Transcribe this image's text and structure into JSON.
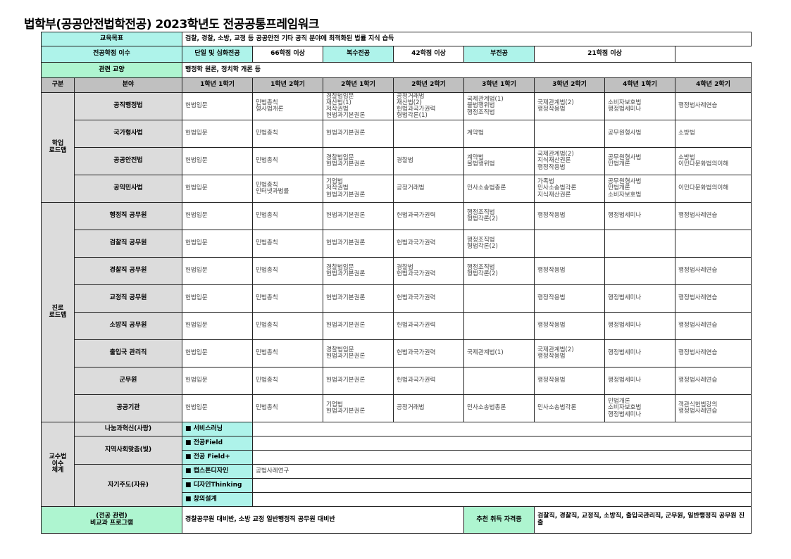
{
  "title": "법학부(공공안전법학전공) 2023학년도 전공공통프레임워크",
  "goal": {
    "label": "교육목표",
    "value": "검찰, 경찰, 소방, 교정 등 공공안전 기타 공직 분야에 최적화된 법률 지식 습득"
  },
  "credits": {
    "label": "전공학점 이수",
    "items": [
      {
        "type": "단일 및 심화전공",
        "value": "66학점 이상"
      },
      {
        "type": "복수전공",
        "value": "42학점 이상"
      },
      {
        "type": "부전공",
        "value": "21학점 이상"
      }
    ]
  },
  "liberal": {
    "label": "관련 교양",
    "value": "행정학 원론, 정치학 개론 등"
  },
  "header": {
    "category": "구분",
    "field": "분야",
    "semesters": [
      "1학년 1학기",
      "1학년 2학기",
      "2학년 1학기",
      "2학년 2학기",
      "3학년 1학기",
      "3학년 2학기",
      "4학년 1학기",
      "4학년 2학기"
    ]
  },
  "groups": [
    {
      "label": "학업\n로드맵",
      "rows": [
        {
          "field": "공직행정법",
          "cells": [
            "헌법입문",
            "민법총칙\n형사법개론",
            "경찰법입문\n재산법(1)\n저작권법\n헌법과기본권론",
            "공정거래법\n재산법(2)\n헌법과국가권력\n형법각론(1)",
            "국제관계법(1)\n불법행위법\n행정조직법",
            "국제관계법(2)\n행정작용법",
            "소비자보호법\n행정법세미나",
            "행정법사례연습"
          ]
        },
        {
          "field": "국가형사법",
          "cells": [
            "헌법입문",
            "민법총칙",
            "헌법과기본권론",
            "",
            "계약법",
            "",
            "공무원형사법",
            "소방법"
          ]
        },
        {
          "field": "공공안전법",
          "cells": [
            "헌법입문",
            "민법총칙",
            "경찰법입문\n헌법과기본권론",
            "경찰법",
            "계약법\n불법행위법",
            "국제관계법(2)\n지식재산권론\n행정작용법",
            "공무원형사법\n민법개론",
            "소방법\n이민다문화법의이해"
          ]
        },
        {
          "field": "공익민사법",
          "cells": [
            "헌법입문",
            "민법총칙\n인터넷과법률",
            "기업법\n저작권법\n헌법과기본권론",
            "공정거래법",
            "민사소송법총론",
            "가족법\n민사소송법각론\n지식재산권론",
            "공무원형사법\n민법개론\n소비자보호법",
            "이민다문화법의이해"
          ]
        }
      ]
    },
    {
      "label": "진로\n로드맵",
      "rows": [
        {
          "field": "행정직 공무원",
          "cells": [
            "헌법입문",
            "민법총칙",
            "헌법과기본권론",
            "헌법과국가권력",
            "행정조직법\n형법각론(2)",
            "행정작용법",
            "행정법세미나",
            "행정법사례연습"
          ]
        },
        {
          "field": "검찰직 공무원",
          "cells": [
            "헌법입문",
            "민법총칙",
            "헌법과기본권론",
            "헌법과국가권력",
            "행정조직법\n형법각론(2)",
            "",
            "",
            ""
          ]
        },
        {
          "field": "경찰직 공무원",
          "cells": [
            "헌법입문",
            "민법총칙",
            "경찰법입문\n헌법과기본권론",
            "경찰법\n헌법과국가권력",
            "행정조직법\n형법각론(2)",
            "행정작용법",
            "",
            "행정법사례연습"
          ]
        },
        {
          "field": "교정직 공무원",
          "cells": [
            "헌법입문",
            "민법총칙",
            "헌법과기본권론",
            "헌법과국가권력",
            "",
            "행정작용법",
            "행정법세미나",
            "행정법사례연습"
          ]
        },
        {
          "field": "소방직 공무원",
          "cells": [
            "헌법입문",
            "민법총칙",
            "헌법과기본권론",
            "헌법과국가권력",
            "",
            "행정작용법",
            "행정법세미나",
            "행정법사례연습"
          ]
        },
        {
          "field": "출입국 관리직",
          "cells": [
            "헌법입문",
            "민법총칙",
            "경찰법입문\n헌법과기본권론",
            "헌법과국가권력",
            "국제관계법(1)",
            "국제관계법(2)\n행정작용법",
            "행정법세미나",
            "행정법사례연습"
          ]
        },
        {
          "field": "군무원",
          "cells": [
            "헌법입문",
            "민법총칙",
            "헌법과기본권론",
            "헌법과국가권력",
            "",
            "행정작용법",
            "행정법세미나",
            "행정법사례연습"
          ]
        },
        {
          "field": "공공기관",
          "cells": [
            "헌법입문",
            "민법총칙",
            "기업법\n헌법과기본권론",
            "공정거래법",
            "민사소송법총론",
            "민사소송법각론",
            "민법개론\n소비자보호법\n행정법세미나",
            "객관식헌법강의\n행정법사례연습"
          ]
        }
      ]
    }
  ],
  "pedagogy": {
    "label": "교수법\n이수\n체계",
    "categories": [
      {
        "name": "나눔과혁신(사랑)",
        "items": [
          {
            "name": "■ 서비스러닝",
            "value": ""
          }
        ]
      },
      {
        "name": "지역사회맞춤(빛)",
        "items": [
          {
            "name": "■ 전공Field",
            "value": ""
          },
          {
            "name": "■ 전공 Field+",
            "value": ""
          }
        ]
      },
      {
        "name": "자기주도(자유)",
        "items": [
          {
            "name": "■ 캡스톤디자인",
            "value": "공법사례연구"
          },
          {
            "name": "■ 디자인Thinking",
            "value": ""
          },
          {
            "name": "■ 창의설계",
            "value": ""
          }
        ]
      }
    ]
  },
  "extracurricular": {
    "label": "(전공 관련)\n비교과 프로그램",
    "value": "경찰공무원 대비반, 소방 교정 일반행정직 공무원 대비반",
    "cert_label": "추천 취득 자격증",
    "cert_value": "검찰직, 경찰직, 교정직, 소방직, 출입국관리직, 군무원, 일반행정직 공무원 진출"
  },
  "colors": {
    "cyan": "#aef3ea",
    "green": "#aef5d0",
    "header_gray": "#c0c0c0",
    "label_gray": "#dcdcdc"
  }
}
